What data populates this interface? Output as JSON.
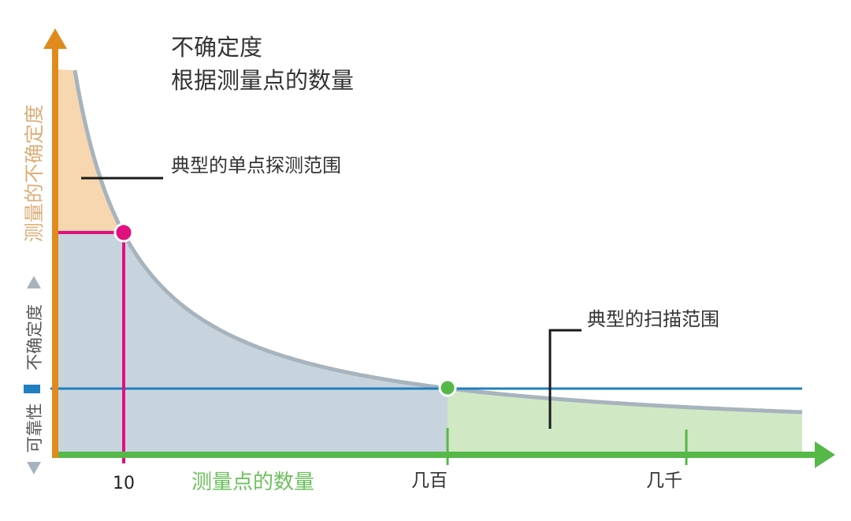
{
  "title": {
    "line1": "不确定度",
    "line2": "根据测量点的数量"
  },
  "y_axis": {
    "label": "测量的不确定度",
    "secondary_top": "不确定度",
    "secondary_bottom": "可靠性"
  },
  "x_axis": {
    "label": "测量点的数量",
    "ticks": [
      "10",
      "几百",
      "几千"
    ]
  },
  "callouts": {
    "single_point": "典型的单点探测范围",
    "scan": "典型的扫描范围"
  },
  "colors": {
    "y_axis": "#e08a1e",
    "x_axis": "#55b848",
    "curve": "#a7b3bd",
    "single_point_fill": "#f6d7b0",
    "area_fill": "#c8d4dd",
    "scan_fill": "#d0e8c4",
    "single_point_marker": "#e0107f",
    "scan_marker": "#55b848",
    "reliability_line": "#1f7fc0"
  }
}
